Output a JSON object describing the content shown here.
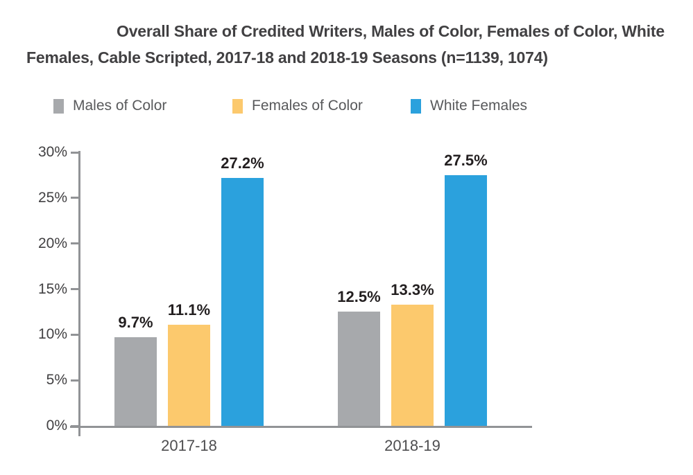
{
  "title": "Overall Share of Credited Writers, Males of Color, Females of Color, White Females, Cable Scripted, 2017-18 and 2018-19 Seasons (n=1139, 1074)",
  "chart_data": {
    "type": "bar",
    "categories": [
      "2017-18",
      "2018-19"
    ],
    "series": [
      {
        "name": "Males of Color",
        "color": "#a7a9ac",
        "values": [
          9.7,
          12.5
        ]
      },
      {
        "name": "Females of Color",
        "color": "#fcc96d",
        "values": [
          11.1,
          13.3
        ]
      },
      {
        "name": "White Females",
        "color": "#2ba1dd",
        "values": [
          27.2,
          27.5
        ]
      }
    ],
    "title": "Overall Share of Credited Writers, Males of Color, Females of Color, White Females, Cable Scripted, 2017-18 and 2018-19 Seasons (n=1139, 1074)",
    "xlabel": "",
    "ylabel": "",
    "ylim": [
      0,
      30
    ],
    "ytick_step": 5,
    "ytick_suffix": "%",
    "value_label_suffix": "%",
    "grid": false,
    "legend_position": "top-left"
  },
  "colors": {
    "background": "#ffffff",
    "title_text": "#414042",
    "axis_line": "#919396",
    "tick_label": "#414042",
    "category_label": "#4d4d4f",
    "data_label": "#231f20",
    "legend_label": "#58595b"
  }
}
